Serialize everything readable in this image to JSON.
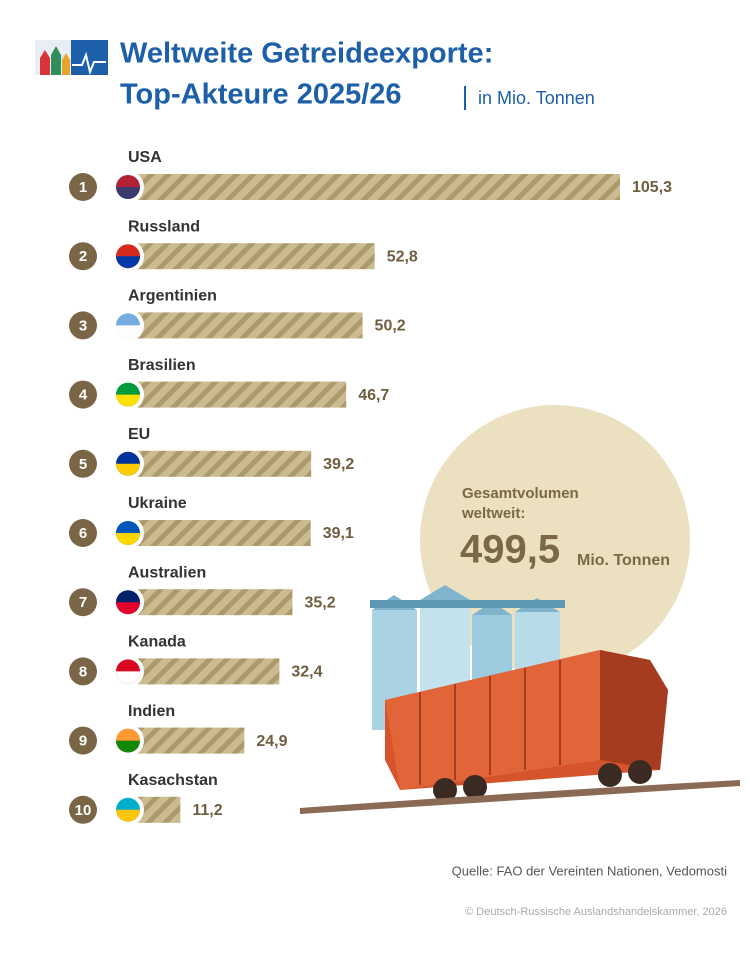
{
  "chart_data": {
    "type": "bar",
    "orientation": "horizontal",
    "title": "Weltweite Getreideexporte:",
    "title_line2": "Top-Akteure 2025/26",
    "subtitle": "in Mio. Tonnen",
    "ranks": [
      1,
      2,
      3,
      4,
      5,
      6,
      7,
      8,
      9,
      10
    ],
    "categories": [
      "USA",
      "Russland",
      "Argentinien",
      "Brasilien",
      "EU",
      "Ukraine",
      "Australien",
      "Kanada",
      "Indien",
      "Kasachstan"
    ],
    "values": [
      105.3,
      52.8,
      50.2,
      46.7,
      39.2,
      39.1,
      35.2,
      32.4,
      24.9,
      11.2
    ],
    "value_labels": [
      "105,3",
      "52,8",
      "50,2",
      "46,7",
      "39,2",
      "39,1",
      "35,2",
      "32,4",
      "24,9",
      "11,2"
    ],
    "color": "#c5b487",
    "total": {
      "label": "Gesamtvolumen weltweit:",
      "value": 499.5,
      "value_label": "499,5",
      "unit": "Mio. Tonnen"
    },
    "source": "Quelle: FAO der Vereinten Nationen, Vedomosti",
    "copyright": "© Deutsch-Russische Auslandshandelskammer, 2026"
  }
}
